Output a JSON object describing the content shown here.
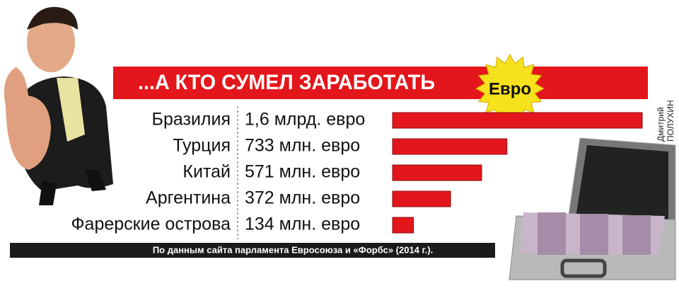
{
  "chart_data": {
    "type": "bar",
    "orientation": "horizontal",
    "title": "...А КТО СУМЕЛ ЗАРАБОТАТЬ",
    "badge": "Евро",
    "credit": [
      "Дмитрий",
      "ПОЛУХИН"
    ],
    "source": "По данным сайта парламента Евросоюза и «Форбс» (2014 г.).",
    "categories": [
      "Бразилия",
      "Турция",
      "Китай",
      "Аргентина",
      "Фарерские острова"
    ],
    "values": [
      1600,
      733,
      571,
      372,
      134
    ],
    "value_labels": [
      "1,6 млрд. евро",
      "733 млн. евро",
      "571 млн. евро",
      "372 млн. евро",
      "134 млн. евро"
    ],
    "color": "#e3161b"
  }
}
